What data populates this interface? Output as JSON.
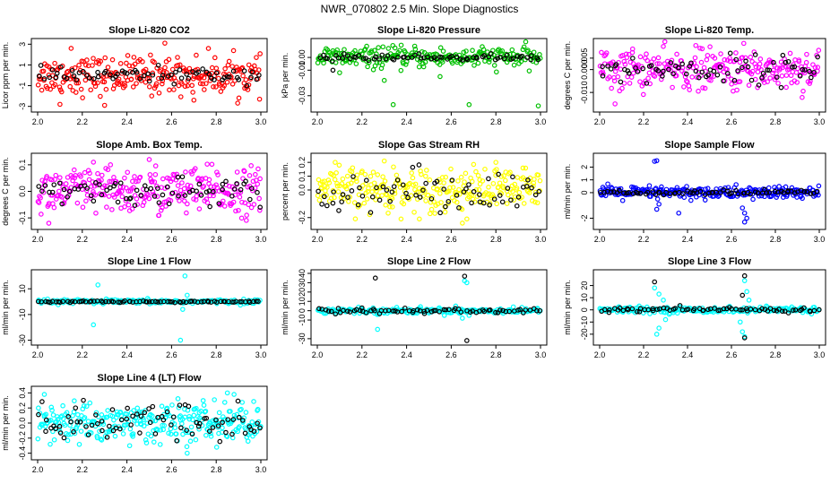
{
  "figure": {
    "title": "NWR_070802  2.5 Min. Slope Diagnostics"
  },
  "chart_data": [
    {
      "type": "scatter",
      "title": "Slope Li-820 CO2",
      "ylabel": "Licor ppm per min.",
      "xlabel": "",
      "xlim": [
        2.0,
        3.0
      ],
      "ylim": [
        -3.2,
        3.2
      ],
      "xticks": [
        "2.0",
        "2.2",
        "2.4",
        "2.6",
        "2.8",
        "3.0"
      ],
      "yticks": [
        "-3",
        "-1",
        "1",
        "3"
      ],
      "series": [
        {
          "color": "#ff0000",
          "count": 260,
          "center": 0.0,
          "spread": 0.9,
          "outliers": [
            [
              2.15,
              2.6
            ],
            [
              2.57,
              3.1
            ],
            [
              2.1,
              -2.8
            ],
            [
              2.3,
              -2.9
            ],
            [
              2.7,
              -2.4
            ]
          ]
        },
        {
          "color": "#000000",
          "count": 70,
          "center": 0.0,
          "spread": 0.35,
          "outliers": []
        }
      ]
    },
    {
      "type": "scatter",
      "title": "Slope Li-820 Pressure",
      "ylabel": "kPa per min.",
      "xlabel": "",
      "xlim": [
        2.0,
        3.0
      ],
      "ylim": [
        -0.04,
        0.012
      ],
      "xticks": [
        "2.0",
        "2.2",
        "2.4",
        "2.6",
        "2.8",
        "3.0"
      ],
      "yticks": [
        "-0.03",
        "-0.01",
        "0.00"
      ],
      "series": [
        {
          "color": "#00c000",
          "count": 240,
          "center": 0.0,
          "spread": 0.004,
          "outliers": [
            [
              2.34,
              -0.037
            ],
            [
              2.68,
              -0.037
            ],
            [
              2.99,
              -0.038
            ],
            [
              2.3,
              -0.018
            ],
            [
              2.55,
              -0.015
            ],
            [
              2.1,
              -0.012
            ]
          ]
        },
        {
          "color": "#000000",
          "count": 70,
          "center": 0.0,
          "spread": 0.0012,
          "outliers": [
            [
              2.07,
              -0.01
            ]
          ]
        }
      ]
    },
    {
      "type": "scatter",
      "title": "Slope Li-820 Temp.",
      "ylabel": "degrees C per min.",
      "xlabel": "",
      "xlim": [
        2.0,
        3.0
      ],
      "ylim": [
        -0.017,
        0.012
      ],
      "xticks": [
        "2.0",
        "2.2",
        "2.4",
        "2.6",
        "2.8",
        "3.0"
      ],
      "yticks": [
        "-0.010",
        "0.000",
        "0.005"
      ],
      "series": [
        {
          "color": "#ff00ff",
          "count": 260,
          "center": 0.0,
          "spread": 0.0045,
          "outliers": [
            [
              2.07,
              -0.015
            ],
            [
              2.15,
              0.009
            ]
          ]
        },
        {
          "color": "#000000",
          "count": 70,
          "center": 0.0,
          "spread": 0.003,
          "outliers": []
        }
      ]
    },
    {
      "type": "scatter",
      "title": "Slope Amb. Box Temp.",
      "ylabel": "degrees C per min.",
      "xlabel": "",
      "xlim": [
        2.0,
        3.0
      ],
      "ylim": [
        -0.13,
        0.13
      ],
      "xticks": [
        "2.0",
        "2.2",
        "2.4",
        "2.6",
        "2.8",
        "3.0"
      ],
      "yticks": [
        "-0.1",
        "0.0",
        "0.1"
      ],
      "series": [
        {
          "color": "#ff00ff",
          "count": 280,
          "center": 0.0,
          "spread": 0.045,
          "outliers": [
            [
              2.5,
              0.12
            ],
            [
              2.05,
              -0.12
            ],
            [
              2.25,
              0.11
            ]
          ]
        },
        {
          "color": "#000000",
          "count": 70,
          "center": 0.0,
          "spread": 0.025,
          "outliers": []
        }
      ]
    },
    {
      "type": "scatter",
      "title": "Slope Gas Stream RH",
      "ylabel": "percent per min.",
      "xlabel": "",
      "xlim": [
        2.0,
        3.0
      ],
      "ylim": [
        -0.26,
        0.24
      ],
      "xticks": [
        "2.0",
        "2.2",
        "2.4",
        "2.6",
        "2.8",
        "3.0"
      ],
      "yticks": [
        "-0.2",
        "0.0",
        "0.1",
        "0.2"
      ],
      "series": [
        {
          "color": "#ffff00",
          "count": 280,
          "center": 0.0,
          "spread": 0.08,
          "outliers": [
            [
              2.08,
              0.2
            ],
            [
              2.3,
              0.21
            ],
            [
              2.65,
              -0.24
            ],
            [
              2.8,
              0.2
            ]
          ]
        },
        {
          "color": "#000000",
          "count": 70,
          "center": 0.0,
          "spread": 0.07,
          "outliers": []
        }
      ]
    },
    {
      "type": "scatter",
      "title": "Slope Sample Flow",
      "ylabel": "ml/min per min.",
      "xlabel": "",
      "xlim": [
        2.0,
        3.0
      ],
      "ylim": [
        -2.6,
        2.8
      ],
      "xticks": [
        "2.0",
        "2.2",
        "2.4",
        "2.6",
        "2.8",
        "3.0"
      ],
      "yticks": [
        "-2",
        "0",
        "1",
        "2"
      ],
      "series": [
        {
          "color": "#0000ff",
          "count": 260,
          "center": 0.0,
          "spread": 0.25,
          "outliers": [
            [
              2.26,
              2.5
            ],
            [
              2.25,
              2.45
            ],
            [
              2.66,
              -2.3
            ],
            [
              2.66,
              -1.6
            ],
            [
              2.65,
              -1.2
            ],
            [
              2.67,
              -2.0
            ],
            [
              2.26,
              -1.3
            ],
            [
              2.27,
              -0.9
            ],
            [
              2.36,
              -1.6
            ]
          ]
        },
        {
          "color": "#000000",
          "count": 70,
          "center": 0.0,
          "spread": 0.1,
          "outliers": []
        }
      ]
    },
    {
      "type": "scatter",
      "title": "Slope Line 1 Flow",
      "ylabel": "ml/min per min.",
      "xlabel": "",
      "xlim": [
        2.0,
        3.0
      ],
      "ylim": [
        -31,
        22
      ],
      "xticks": [
        "2.0",
        "2.2",
        "2.4",
        "2.6",
        "2.8",
        "3.0"
      ],
      "yticks": [
        "-30",
        "-10",
        "10"
      ],
      "series": [
        {
          "color": "#00ffff",
          "count": 200,
          "center": 0.0,
          "spread": 0.8,
          "outliers": [
            [
              2.27,
              13
            ],
            [
              2.25,
              -18
            ],
            [
              2.66,
              20
            ],
            [
              2.65,
              -6
            ],
            [
              2.64,
              -30
            ],
            [
              2.67,
              5
            ]
          ]
        },
        {
          "color": "#000000",
          "count": 80,
          "center": 0.0,
          "spread": 0.3,
          "outliers": []
        }
      ]
    },
    {
      "type": "scatter",
      "title": "Slope Line 2 Flow",
      "ylabel": "ml/min per min.",
      "xlabel": "",
      "xlim": [
        2.0,
        3.0
      ],
      "ylim": [
        -33,
        40
      ],
      "xticks": [
        "2.0",
        "2.2",
        "2.4",
        "2.6",
        "2.8",
        "3.0"
      ],
      "yticks": [
        "-30",
        "-10",
        "0",
        "10",
        "20",
        "30",
        "40"
      ],
      "series": [
        {
          "color": "#00ffff",
          "count": 220,
          "center": 0.0,
          "spread": 1.5,
          "outliers": [
            [
              2.27,
              -20
            ],
            [
              2.66,
              32
            ],
            [
              2.67,
              30
            ],
            [
              2.65,
              -8
            ],
            [
              2.62,
              5
            ],
            [
              2.68,
              -5
            ],
            [
              2.25,
              3
            ]
          ]
        },
        {
          "color": "#000000",
          "count": 70,
          "center": 0.0,
          "spread": 1.5,
          "outliers": [
            [
              2.26,
              35
            ],
            [
              2.66,
              37
            ],
            [
              2.67,
              -32
            ],
            [
              2.2,
              3
            ],
            [
              2.48,
              -3
            ]
          ]
        }
      ]
    },
    {
      "type": "scatter",
      "title": "Slope Line 3 Flow",
      "ylabel": "ml/min per min.",
      "xlabel": "",
      "xlim": [
        2.0,
        3.0
      ],
      "ylim": [
        -26,
        30
      ],
      "xticks": [
        "2.0",
        "2.2",
        "2.4",
        "2.6",
        "2.8",
        "3.0"
      ],
      "yticks": [
        "-20",
        "-10",
        "0",
        "10",
        "20"
      ],
      "series": [
        {
          "color": "#00ffff",
          "count": 220,
          "center": 0.0,
          "spread": 1.2,
          "outliers": [
            [
              2.25,
              18
            ],
            [
              2.27,
              13
            ],
            [
              2.29,
              8
            ],
            [
              2.27,
              -15
            ],
            [
              2.26,
              -20
            ],
            [
              2.66,
              24
            ],
            [
              2.65,
              -18
            ],
            [
              2.67,
              15
            ],
            [
              2.64,
              -10
            ],
            [
              2.66,
              -22
            ],
            [
              2.68,
              8
            ],
            [
              2.3,
              -8
            ]
          ]
        },
        {
          "color": "#000000",
          "count": 70,
          "center": 0.0,
          "spread": 1.0,
          "outliers": [
            [
              2.25,
              23
            ],
            [
              2.66,
              28
            ],
            [
              2.66,
              -23
            ],
            [
              2.65,
              12
            ]
          ]
        }
      ]
    },
    {
      "type": "scatter",
      "title": "Slope Line 4 (LT) Flow",
      "ylabel": "ml/min per min.",
      "xlabel": "",
      "xlim": [
        2.0,
        3.0
      ],
      "ylim": [
        -0.44,
        0.44
      ],
      "xticks": [
        "2.0",
        "2.2",
        "2.4",
        "2.6",
        "2.8",
        "3.0"
      ],
      "yticks": [
        "-0.4",
        "-0.2",
        "0.0",
        "0.2",
        "0.4"
      ],
      "series": [
        {
          "color": "#00ffff",
          "count": 300,
          "center": 0.0,
          "spread": 0.13,
          "outliers": [
            [
              2.03,
              0.38
            ],
            [
              2.85,
              0.4
            ],
            [
              2.88,
              0.38
            ],
            [
              2.67,
              -0.4
            ]
          ]
        },
        {
          "color": "#000000",
          "count": 80,
          "center": 0.0,
          "spread": 0.13,
          "outliers": []
        }
      ]
    }
  ]
}
